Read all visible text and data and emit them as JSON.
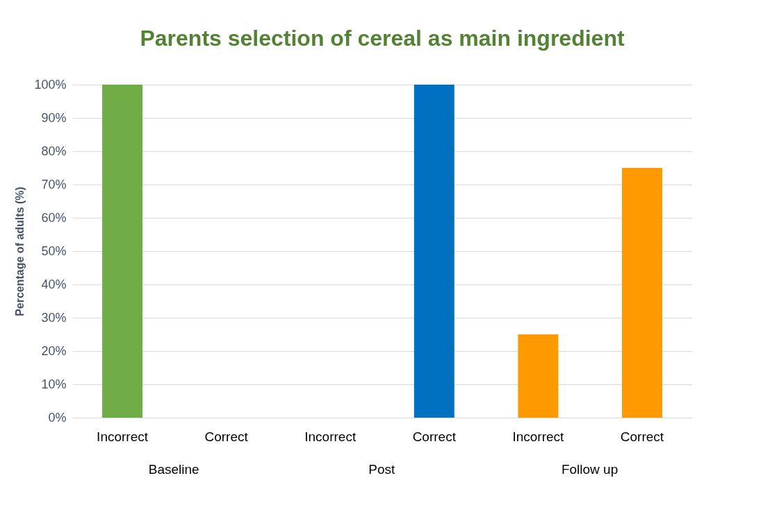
{
  "chart_data": {
    "type": "bar",
    "title": "Parents selection of cereal as main ingredient",
    "ylabel": "Percentage of adults (%)",
    "categories": [
      "Incorrect",
      "Correct",
      "Incorrect",
      "Correct",
      "Incorrect",
      "Correct"
    ],
    "values": [
      100,
      0,
      0,
      100,
      25,
      75
    ],
    "colors": [
      "#70ad47",
      "#70ad47",
      "#0070c0",
      "#0070c0",
      "#ff9900",
      "#ff9900"
    ],
    "annotations": [
      "Baseline",
      "Post",
      "Follow up"
    ],
    "ylim": [
      0,
      100
    ],
    "yticks": [
      {
        "value": 0,
        "label": "0%"
      },
      {
        "value": 10,
        "label": "10%"
      },
      {
        "value": 20,
        "label": "20%"
      },
      {
        "value": 30,
        "label": "30%"
      },
      {
        "value": 40,
        "label": "40%"
      },
      {
        "value": 50,
        "label": "50%"
      },
      {
        "value": 60,
        "label": "60%"
      },
      {
        "value": 70,
        "label": "70%"
      },
      {
        "value": 80,
        "label": "80%"
      },
      {
        "value": 90,
        "label": "90%"
      },
      {
        "value": 100,
        "label": "100%"
      }
    ],
    "grid": true
  }
}
